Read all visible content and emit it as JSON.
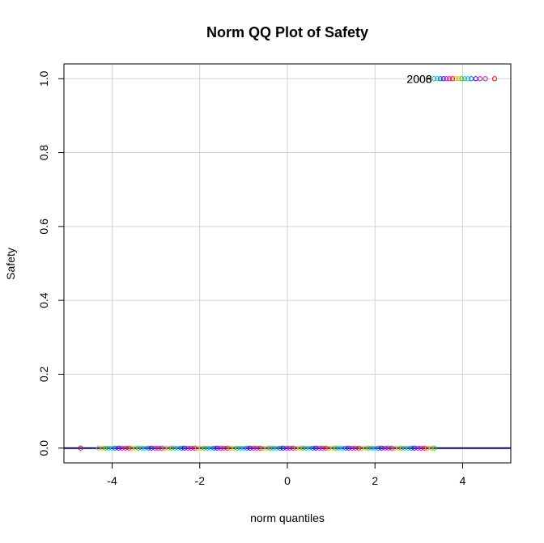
{
  "chart_data": {
    "type": "scatter",
    "title": "Norm QQ Plot of Safety",
    "xlabel": "norm quantiles",
    "ylabel": "Safety",
    "xlim": [
      -5.1,
      5.1
    ],
    "ylim": [
      -0.04,
      1.04
    ],
    "xticks": [
      -4,
      -2,
      0,
      2,
      4
    ],
    "yticks": [
      0.0,
      0.2,
      0.4,
      0.6,
      0.8,
      1.0
    ],
    "xtick_labels": [
      "-4",
      "-2",
      "0",
      "2",
      "4"
    ],
    "ytick_labels": [
      "0.0",
      "0.2",
      "0.4",
      "0.6",
      "0.8",
      "1.0"
    ],
    "grid": true,
    "point_colors": [
      "#ff0000",
      "#ff9900",
      "#cccc00",
      "#33cc00",
      "#00cc99",
      "#00ccff",
      "#0066ff",
      "#3300ff",
      "#cc00ff",
      "#ff0099"
    ],
    "reference_line": {
      "color": "#00008b",
      "y": 0.0
    },
    "series": [
      {
        "values_y": 0,
        "x": [
          -4.72,
          -4.31,
          -4.22,
          -4.15,
          -4.08,
          -4.0,
          -3.93,
          -3.85,
          -3.78,
          -3.7,
          -3.62,
          -3.55,
          -3.47,
          -3.4,
          -3.32,
          -3.25,
          -3.17,
          -3.1,
          -3.02,
          -2.95,
          -2.87,
          -2.8,
          -2.72,
          -2.65,
          -2.57,
          -2.5,
          -2.42,
          -2.35,
          -2.27,
          -2.2,
          -2.12,
          -2.05,
          -1.97,
          -1.9,
          -1.82,
          -1.75,
          -1.67,
          -1.6,
          -1.52,
          -1.45,
          -1.37,
          -1.3,
          -1.22,
          -1.15,
          -1.07,
          -1.0,
          -0.92,
          -0.85,
          -0.77,
          -0.7,
          -0.62,
          -0.55,
          -0.47,
          -0.4,
          -0.32,
          -0.25,
          -0.17,
          -0.1,
          -0.02,
          0.05,
          0.13,
          0.2,
          0.28,
          0.35,
          0.43,
          0.5,
          0.58,
          0.65,
          0.73,
          0.8,
          0.88,
          0.95,
          1.03,
          1.1,
          1.18,
          1.25,
          1.33,
          1.4,
          1.48,
          1.55,
          1.63,
          1.7,
          1.78,
          1.85,
          1.93,
          2.0,
          2.08,
          2.15,
          2.23,
          2.3,
          2.38,
          2.45,
          2.53,
          2.6,
          2.68,
          2.75,
          2.83,
          2.9,
          2.98,
          3.05,
          3.13,
          3.2,
          3.28,
          3.35
        ]
      },
      {
        "values_y": 1,
        "x": [
          3.35,
          3.42,
          3.49,
          3.56,
          3.63,
          3.7,
          3.77,
          3.84,
          3.91,
          3.98,
          4.05,
          4.12,
          4.2,
          4.3,
          4.4,
          4.52,
          4.73
        ]
      }
    ],
    "annotations": [
      {
        "text": "2008",
        "x": 3.3,
        "y": 1.0,
        "anchor": "end"
      },
      {
        "text": "2006",
        "x": 3.3,
        "y": 1.0,
        "anchor": "end"
      }
    ]
  }
}
